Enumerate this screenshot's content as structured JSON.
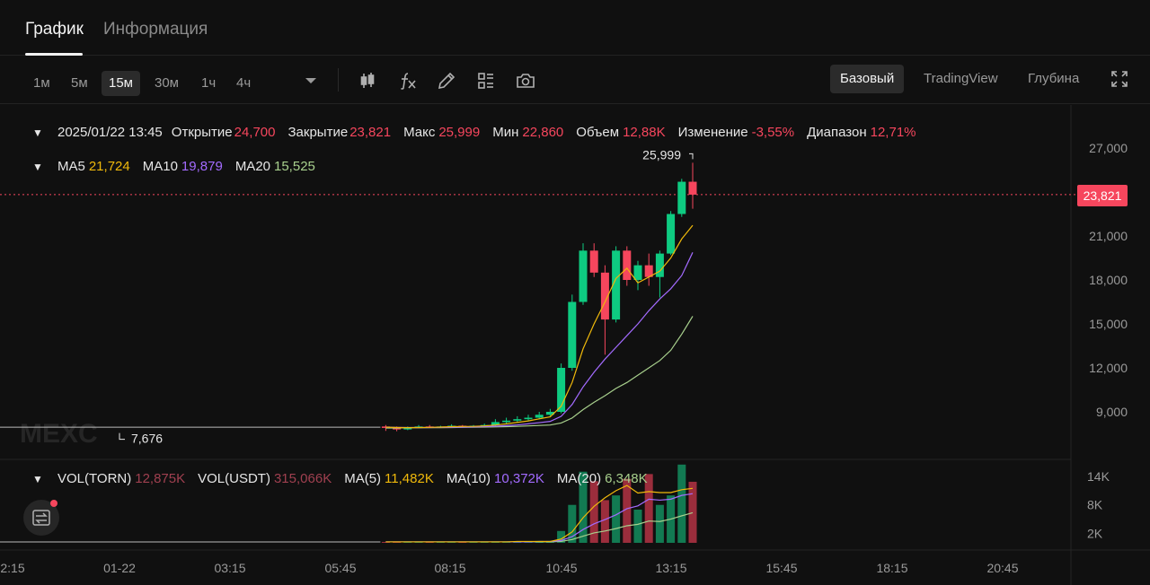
{
  "tabs": [
    {
      "label": "График"
    },
    {
      "label": "Информация"
    }
  ],
  "timeframes": [
    "1м",
    "5м",
    "15м",
    "30м",
    "1ч",
    "4ч"
  ],
  "active_timeframe": "15м",
  "views": [
    "Базовый",
    "TradingView",
    "Глубина"
  ],
  "active_view": "Базовый",
  "ohlc": {
    "datetime": "2025/01/22 13:45",
    "open_label": "Открытие",
    "open": "24,700",
    "close_label": "Закрытие",
    "close": "23,821",
    "high_label": "Макс",
    "high": "25,999",
    "low_label": "Мин",
    "low": "22,860",
    "volume_label": "Объем",
    "volume": "12,88K",
    "change_label": "Изменение",
    "change": "-3,55%",
    "range_label": "Диапазон",
    "range": "12,71%"
  },
  "ma": {
    "ma5_label": "MA5",
    "ma5": "21,724",
    "ma10_label": "MA10",
    "ma10": "19,879",
    "ma20_label": "MA20",
    "ma20": "15,525"
  },
  "vol": {
    "torn_label": "VOL(TORN)",
    "torn": "12,875K",
    "usdt_label": "VOL(USDT)",
    "usdt": "315,066K",
    "ma5_label": "MA(5)",
    "ma5": "11,482K",
    "ma10_label": "MA(10)",
    "ma10": "10,372K",
    "ma20_label": "MA(20)",
    "ma20": "6,348K"
  },
  "current_price": "23,821",
  "high_marker": "25,999",
  "low_marker": "7,676",
  "watermark": "MEXC",
  "colors": {
    "up": "#0ecb81",
    "down": "#f6465d",
    "ma5": "#f0b90b",
    "ma10": "#a36bff",
    "ma20": "#a8d08d"
  },
  "chart_data": {
    "type": "candlestick",
    "price_axis_ticks": [
      "27,000",
      "21,000",
      "18,000",
      "15,000",
      "12,000",
      "9,000"
    ],
    "volume_axis_ticks": [
      "14K",
      "8K",
      "2K"
    ],
    "time_axis_ticks": [
      "2:15",
      "01-22",
      "03:15",
      "05:45",
      "08:15",
      "10:45",
      "13:15",
      "15:45",
      "18:15",
      "20:45"
    ],
    "price_range": [
      7000,
      28000
    ],
    "volume_range": [
      0,
      17000
    ],
    "candles": [
      {
        "o": 8000,
        "h": 8100,
        "l": 7700,
        "c": 7900
      },
      {
        "o": 7900,
        "h": 8000,
        "l": 7676,
        "c": 7800
      },
      {
        "o": 7800,
        "h": 8000,
        "l": 7750,
        "c": 7950
      },
      {
        "o": 7950,
        "h": 8100,
        "l": 7900,
        "c": 8000
      },
      {
        "o": 8000,
        "h": 8100,
        "l": 7900,
        "c": 7950
      },
      {
        "o": 7950,
        "h": 8050,
        "l": 7900,
        "c": 8000
      },
      {
        "o": 8000,
        "h": 8150,
        "l": 7950,
        "c": 8050
      },
      {
        "o": 8050,
        "h": 8100,
        "l": 7950,
        "c": 8000
      },
      {
        "o": 8000,
        "h": 8100,
        "l": 7950,
        "c": 8050
      },
      {
        "o": 8050,
        "h": 8200,
        "l": 8000,
        "c": 8100
      },
      {
        "o": 8100,
        "h": 8500,
        "l": 8050,
        "c": 8300
      },
      {
        "o": 8300,
        "h": 8600,
        "l": 8200,
        "c": 8400
      },
      {
        "o": 8400,
        "h": 8700,
        "l": 8300,
        "c": 8500
      },
      {
        "o": 8500,
        "h": 8800,
        "l": 8400,
        "c": 8600
      },
      {
        "o": 8600,
        "h": 9000,
        "l": 8500,
        "c": 8800
      },
      {
        "o": 8800,
        "h": 9200,
        "l": 8700,
        "c": 9000
      },
      {
        "o": 9000,
        "h": 12300,
        "l": 8900,
        "c": 12000
      },
      {
        "o": 12000,
        "h": 17000,
        "l": 11800,
        "c": 16500
      },
      {
        "o": 16500,
        "h": 20500,
        "l": 16300,
        "c": 20000
      },
      {
        "o": 20000,
        "h": 20500,
        "l": 18200,
        "c": 18500
      },
      {
        "o": 18500,
        "h": 19000,
        "l": 12900,
        "c": 15300
      },
      {
        "o": 15300,
        "h": 20300,
        "l": 15100,
        "c": 20000
      },
      {
        "o": 20000,
        "h": 20300,
        "l": 17600,
        "c": 18000
      },
      {
        "o": 18000,
        "h": 19300,
        "l": 17300,
        "c": 19000
      },
      {
        "o": 19000,
        "h": 19800,
        "l": 17600,
        "c": 18200
      },
      {
        "o": 18200,
        "h": 20000,
        "l": 16800,
        "c": 19800
      },
      {
        "o": 19800,
        "h": 22700,
        "l": 19700,
        "c": 22500
      },
      {
        "o": 22500,
        "h": 24900,
        "l": 22300,
        "c": 24700
      },
      {
        "o": 24700,
        "h": 25999,
        "l": 22860,
        "c": 23821
      }
    ],
    "volumes": [
      0.2,
      0.2,
      0.2,
      0.2,
      0.2,
      0.2,
      0.2,
      0.2,
      0.2,
      0.2,
      0.3,
      0.3,
      0.3,
      0.3,
      0.4,
      0.4,
      2.5,
      8.0,
      15.0,
      13.0,
      9.0,
      10.0,
      13.5,
      7.0,
      14.5,
      8.0,
      10.0,
      16.5,
      12.875
    ],
    "ma5": [
      7950,
      7930,
      7920,
      7930,
      7940,
      7960,
      7990,
      8000,
      8010,
      8040,
      8100,
      8180,
      8280,
      8380,
      8520,
      8660,
      9380,
      11000,
      13300,
      15000,
      16500,
      18100,
      18800,
      17800,
      18200,
      18600,
      19500,
      20800,
      21724
    ],
    "ma10": [
      7950,
      7940,
      7930,
      7930,
      7930,
      7940,
      7950,
      7960,
      7970,
      7990,
      8020,
      8060,
      8110,
      8180,
      8260,
      8350,
      8690,
      9500,
      10700,
      11700,
      12600,
      13400,
      14200,
      15000,
      15900,
      16700,
      17400,
      18300,
      19879
    ],
    "ma20": [
      7900,
      7900,
      7910,
      7910,
      7920,
      7920,
      7930,
      7940,
      7950,
      7960,
      7970,
      7990,
      8010,
      8040,
      8070,
      8100,
      8240,
      8580,
      9150,
      9650,
      10100,
      10600,
      11000,
      11500,
      12000,
      12500,
      13200,
      14300,
      15525
    ],
    "vol_ma5": [
      0.2,
      0.2,
      0.2,
      0.2,
      0.2,
      0.2,
      0.2,
      0.2,
      0.2,
      0.2,
      0.2,
      0.2,
      0.3,
      0.3,
      0.3,
      0.3,
      0.8,
      2.3,
      5.3,
      7.7,
      9.5,
      11.0,
      12.1,
      10.5,
      10.8,
      10.6,
      10.6,
      11.2,
      11.482
    ],
    "vol_ma10": [
      0.2,
      0.2,
      0.2,
      0.2,
      0.2,
      0.2,
      0.2,
      0.2,
      0.2,
      0.2,
      0.2,
      0.2,
      0.2,
      0.2,
      0.3,
      0.3,
      0.5,
      1.3,
      2.8,
      4.0,
      4.9,
      5.9,
      7.2,
      7.8,
      9.2,
      9.0,
      9.2,
      10.0,
      10.372
    ],
    "vol_ma20": [
      0.2,
      0.2,
      0.2,
      0.2,
      0.2,
      0.2,
      0.2,
      0.2,
      0.2,
      0.2,
      0.2,
      0.2,
      0.2,
      0.2,
      0.2,
      0.2,
      0.3,
      0.7,
      1.4,
      2.1,
      2.5,
      3.0,
      3.6,
      3.9,
      4.6,
      4.5,
      5.0,
      5.7,
      6.348
    ]
  }
}
